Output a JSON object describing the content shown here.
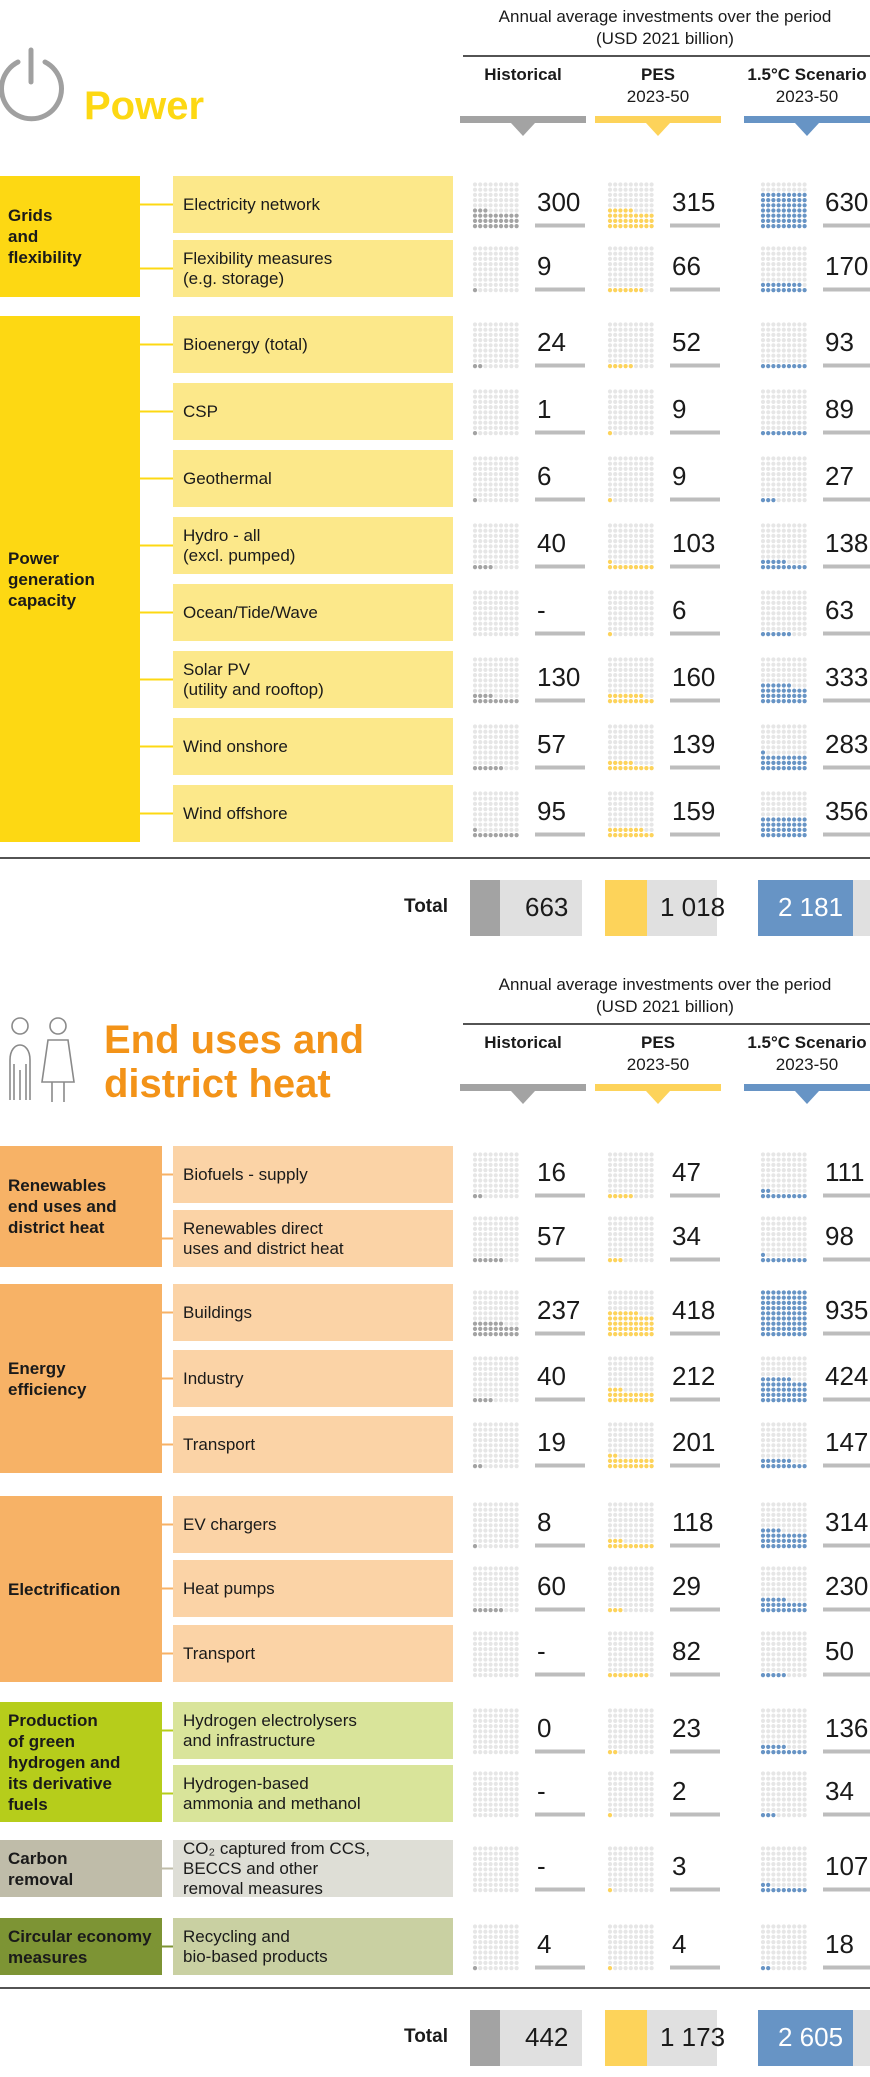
{
  "colors": {
    "yellow": "#fdd813",
    "yellow_light": "#fce88a",
    "orange_title": "#f39318",
    "orange": "#f7b266",
    "orange_light": "#fbd3a6",
    "green": "#b6cd1b",
    "green_light": "#d9e49a",
    "grey_group": "#bfbca9",
    "grey_light": "#deded6",
    "olive": "#7d9434",
    "olive_light": "#c9d0a2",
    "hist": "#a3a3a3",
    "pes": "#fdd35a",
    "sc15": "#6794c5",
    "dot_bg": "#e6e6e6"
  },
  "headers": {
    "annual_line1": "Annual average investments over the period",
    "annual_line2": "(USD 2021 billion)",
    "hist": "Historical",
    "pes_line1": "PES",
    "pes_line2": "2023-50",
    "sc15_line1": "1.5°C Scenario",
    "sc15_line2": "2023-50"
  },
  "power": {
    "title": "Power",
    "total_label": "Total",
    "totals": {
      "hist": "663",
      "pes": "1 018",
      "sc15": "2 181"
    },
    "groups": [
      {
        "lines": [
          "Grids",
          "and",
          "flexibility"
        ]
      },
      {
        "lines": [
          "Power",
          "generation",
          "capacity"
        ]
      }
    ],
    "items": [
      {
        "lines": [
          "Electricity network"
        ],
        "icon": "transmission-tower-icon",
        "hist": "300",
        "pes": "315",
        "sc15": "630"
      },
      {
        "lines": [
          "Flexibility measures",
          "(e.g. storage)"
        ],
        "icon": "battery-icon",
        "hist": "9",
        "pes": "66",
        "sc15": "170"
      },
      {
        "lines": [
          "Bioenergy (total)"
        ],
        "icon": "leaf-icon",
        "hist": "24",
        "pes": "52",
        "sc15": "93"
      },
      {
        "lines": [
          "CSP"
        ],
        "icon": "csp-mirror-icon",
        "hist": "1",
        "pes": "9",
        "sc15": "89"
      },
      {
        "lines": [
          "Geothermal"
        ],
        "icon": "geothermal-icon",
        "hist": "6",
        "pes": "9",
        "sc15": "27"
      },
      {
        "lines": [
          "Hydro - all",
          "(excl. pumped)"
        ],
        "icon": "water-drop-icon",
        "hist": "40",
        "pes": "103",
        "sc15": "138"
      },
      {
        "lines": [
          "Ocean/Tide/Wave"
        ],
        "icon": "wave-sun-icon",
        "hist": "-",
        "pes": "6",
        "sc15": "63"
      },
      {
        "lines": [
          "Solar PV",
          "(utility and rooftop)"
        ],
        "icon": "solar-house-icon",
        "hist": "130",
        "pes": "160",
        "sc15": "333"
      },
      {
        "lines": [
          "Wind onshore"
        ],
        "icon": "wind-turbine-icon",
        "hist": "57",
        "pes": "139",
        "sc15": "283"
      },
      {
        "lines": [
          "Wind offshore"
        ],
        "icon": "offshore-wind-icon",
        "hist": "95",
        "pes": "159",
        "sc15": "356"
      }
    ]
  },
  "enduse": {
    "title_line1": "End uses and",
    "title_line2": "district heat",
    "total_label": "Total",
    "totals": {
      "hist": "442",
      "pes": "1 173",
      "sc15": "2 605"
    },
    "groups": [
      {
        "lines": [
          "Renewables",
          "end uses and",
          "district heat"
        ]
      },
      {
        "lines": [
          "Energy",
          "efficiency"
        ]
      },
      {
        "lines": [
          "Electrification"
        ]
      },
      {
        "lines": [
          "Production",
          "of green",
          "hydrogen and",
          "its derivative",
          "fuels"
        ]
      },
      {
        "lines": [
          "Carbon",
          "removal"
        ]
      },
      {
        "lines": [
          "Circular economy",
          "measures"
        ]
      }
    ],
    "items": [
      {
        "lines": [
          "Biofuels - supply"
        ],
        "icon": "fuel-pump-icon",
        "hist": "16",
        "pes": "47",
        "sc15": "111"
      },
      {
        "lines": [
          "Renewables direct",
          "uses and district heat"
        ],
        "icon": "plug-icon",
        "hist": "57",
        "pes": "34",
        "sc15": "98"
      },
      {
        "lines": [
          "Buildings"
        ],
        "icon": "buildings-icon",
        "hist": "237",
        "pes": "418",
        "sc15": "935"
      },
      {
        "lines": [
          "Industry"
        ],
        "icon": "factory-icon",
        "hist": "40",
        "pes": "212",
        "sc15": "424"
      },
      {
        "lines": [
          "Transport"
        ],
        "icon": "truck-icon",
        "hist": "19",
        "pes": "201",
        "sc15": "147"
      },
      {
        "lines": [
          "EV chargers"
        ],
        "icon": "ev-charger-icon",
        "hist": "8",
        "pes": "118",
        "sc15": "314"
      },
      {
        "lines": [
          "Heat pumps"
        ],
        "icon": "heat-pump-icon",
        "hist": "60",
        "pes": "29",
        "sc15": "230"
      },
      {
        "lines": [
          "Transport"
        ],
        "icon": "truck-icon",
        "hist": "-",
        "pes": "82",
        "sc15": "50"
      },
      {
        "lines": [
          "Hydrogen electrolysers",
          "and infrastructure"
        ],
        "icon": "electrolyser-icon",
        "hist": "0",
        "pes": "23",
        "sc15": "136"
      },
      {
        "lines": [
          "Hydrogen-based",
          "ammonia and methanol"
        ],
        "icon": "molecule-icon",
        "hist": "-",
        "pes": "2",
        "sc15": "34"
      },
      {
        "lines": [
          "CO₂ captured from CCS,",
          "BECCS and other",
          "removal measures"
        ],
        "icon": "co2-icon",
        "hist": "-",
        "pes": "3",
        "sc15": "107"
      },
      {
        "lines": [
          "Recycling and",
          "bio-based products"
        ],
        "icon": "recycle-icon",
        "hist": "4",
        "pes": "4",
        "sc15": "18"
      }
    ]
  },
  "chart_data": [
    {
      "type": "table",
      "title": "Power",
      "columns": [
        "Historical",
        "PES 2023-50",
        "1.5°C Scenario 2023-50"
      ],
      "rows": [
        {
          "group": "Grids and flexibility",
          "item": "Electricity network",
          "values": [
            300,
            315,
            630
          ]
        },
        {
          "group": "Grids and flexibility",
          "item": "Flexibility measures (e.g. storage)",
          "values": [
            9,
            66,
            170
          ]
        },
        {
          "group": "Power generation capacity",
          "item": "Bioenergy (total)",
          "values": [
            24,
            52,
            93
          ]
        },
        {
          "group": "Power generation capacity",
          "item": "CSP",
          "values": [
            1,
            9,
            89
          ]
        },
        {
          "group": "Power generation capacity",
          "item": "Geothermal",
          "values": [
            6,
            9,
            27
          ]
        },
        {
          "group": "Power generation capacity",
          "item": "Hydro - all (excl. pumped)",
          "values": [
            40,
            103,
            138
          ]
        },
        {
          "group": "Power generation capacity",
          "item": "Ocean/Tide/Wave",
          "values": [
            null,
            6,
            63
          ]
        },
        {
          "group": "Power generation capacity",
          "item": "Solar PV (utility and rooftop)",
          "values": [
            130,
            160,
            333
          ]
        },
        {
          "group": "Power generation capacity",
          "item": "Wind onshore",
          "values": [
            57,
            139,
            283
          ]
        },
        {
          "group": "Power generation capacity",
          "item": "Wind offshore",
          "values": [
            95,
            159,
            356
          ]
        }
      ],
      "totals": [
        663,
        1018,
        2181
      ]
    },
    {
      "type": "table",
      "title": "End uses and district heat",
      "columns": [
        "Historical",
        "PES 2023-50",
        "1.5°C Scenario 2023-50"
      ],
      "rows": [
        {
          "group": "Renewables end uses and district heat",
          "item": "Biofuels - supply",
          "values": [
            16,
            47,
            111
          ]
        },
        {
          "group": "Renewables end uses and district heat",
          "item": "Renewables direct uses and district heat",
          "values": [
            57,
            34,
            98
          ]
        },
        {
          "group": "Energy efficiency",
          "item": "Buildings",
          "values": [
            237,
            418,
            935
          ]
        },
        {
          "group": "Energy efficiency",
          "item": "Industry",
          "values": [
            40,
            212,
            424
          ]
        },
        {
          "group": "Energy efficiency",
          "item": "Transport",
          "values": [
            19,
            201,
            147
          ]
        },
        {
          "group": "Electrification",
          "item": "EV chargers",
          "values": [
            8,
            118,
            314
          ]
        },
        {
          "group": "Electrification",
          "item": "Heat pumps",
          "values": [
            60,
            29,
            230
          ]
        },
        {
          "group": "Electrification",
          "item": "Transport",
          "values": [
            null,
            82,
            50
          ]
        },
        {
          "group": "Production of green hydrogen and its derivative fuels",
          "item": "Hydrogen electrolysers and infrastructure",
          "values": [
            0,
            23,
            136
          ]
        },
        {
          "group": "Production of green hydrogen and its derivative fuels",
          "item": "Hydrogen-based ammonia and methanol",
          "values": [
            null,
            2,
            34
          ]
        },
        {
          "group": "Carbon removal",
          "item": "CO2 captured from CCS, BECCS and other removal measures",
          "values": [
            null,
            3,
            107
          ]
        },
        {
          "group": "Circular economy measures",
          "item": "Recycling and bio-based products",
          "values": [
            4,
            4,
            18
          ]
        }
      ],
      "totals": [
        442,
        1173,
        2605
      ]
    }
  ]
}
